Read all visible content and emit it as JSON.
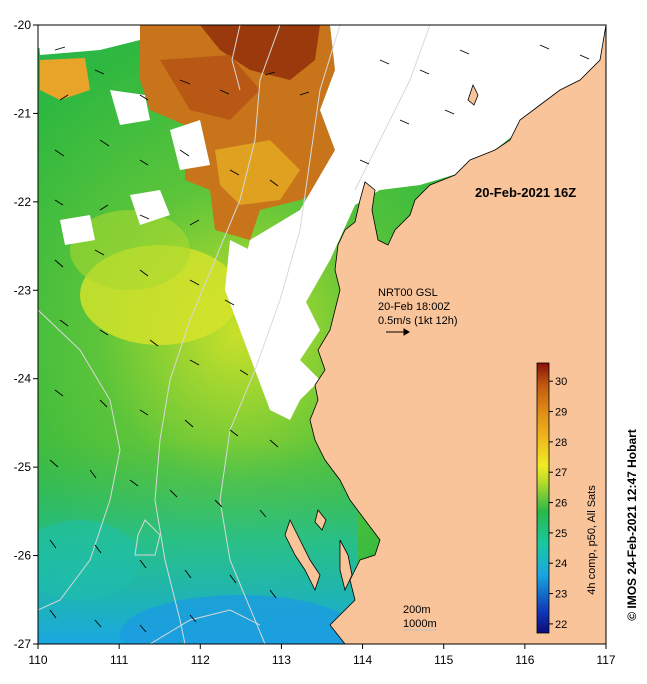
{
  "map": {
    "date_label": "20-Feb-2021 16Z",
    "current_info": {
      "line1": "NRT00 GSL",
      "line2": "20-Feb 18:00Z",
      "line3": "0.5m/s (1kt 12h)"
    },
    "depth_contours": {
      "line1": "200m",
      "line2": "1000m"
    },
    "colorbar": {
      "caption": "4h comp, p50, All Sats",
      "min": 21.7,
      "max": 30.6,
      "ticks": [
        "22",
        "23",
        "24",
        "25",
        "26",
        "27",
        "28",
        "29",
        "30"
      ]
    },
    "credit": "© IMOS 24-Feb-2021 12:47 Hobart",
    "x_axis": {
      "range": [
        110,
        117
      ],
      "ticks": [
        "110",
        "111",
        "112",
        "113",
        "114",
        "115",
        "116",
        "117"
      ]
    },
    "y_axis": {
      "range": [
        -27,
        -20
      ],
      "ticks": [
        "-20",
        "-21",
        "-22",
        "-23",
        "-24",
        "-25",
        "-26",
        "-27"
      ]
    },
    "colors": {
      "land": "#f9c49a",
      "cloud": "#ffffff"
    }
  }
}
